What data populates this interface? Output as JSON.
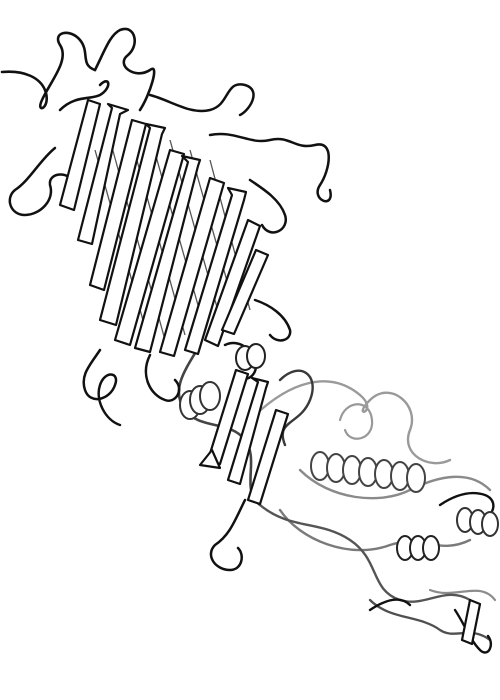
{
  "image": {
    "subject": "protein-ribbon-diagram",
    "style": "black-and-white line drawing",
    "colors": {
      "background": "#ffffff",
      "near_stroke": "#111111",
      "mid_stroke": "#444444",
      "far_stroke": "#8a8a8a",
      "fill": "#ffffff"
    }
  }
}
